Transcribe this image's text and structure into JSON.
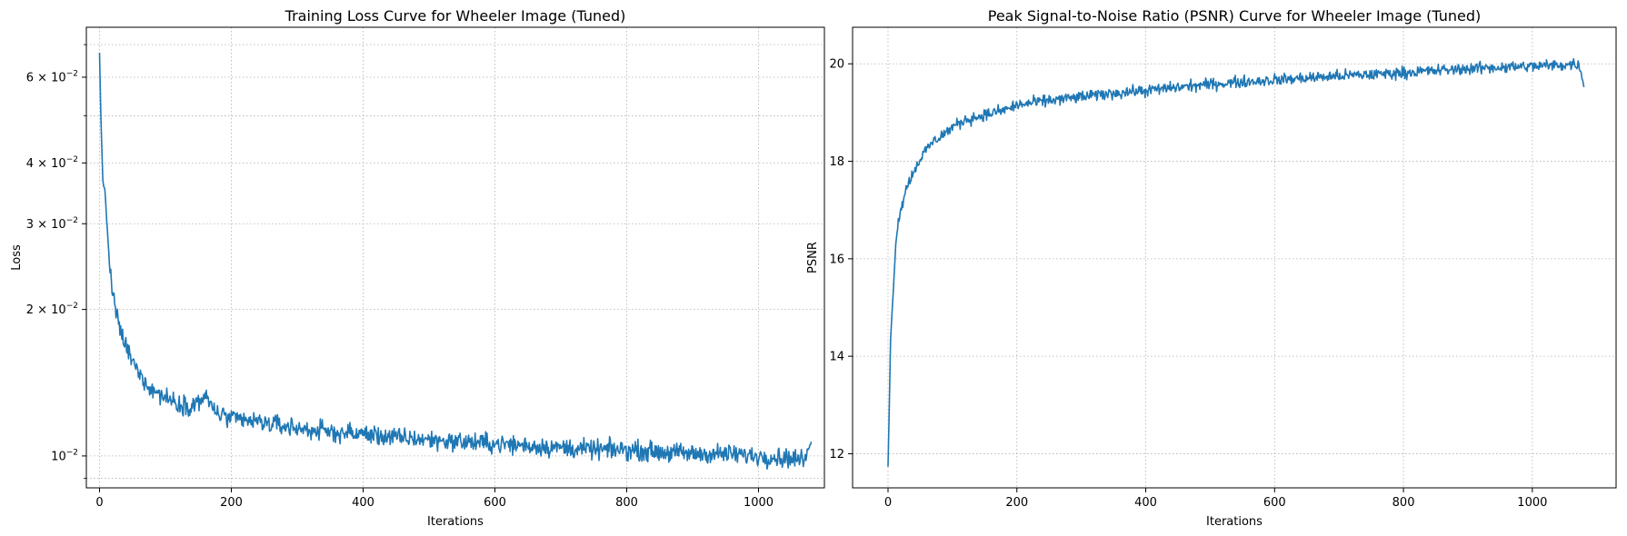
{
  "figure": {
    "background": "#ffffff",
    "line_color": "#1f77b4",
    "grid_color": "#b0b0b0"
  },
  "chart_data": [
    {
      "type": "line",
      "title": "Training Loss Curve for Wheeler Image (Tuned)",
      "xlabel": "Iterations",
      "ylabel": "Loss",
      "yscale": "log",
      "grid": true,
      "grid_style": "dotted",
      "xlim": [
        -20,
        1100
      ],
      "ylim": [
        0.0086,
        0.076
      ],
      "xticks": [
        0,
        200,
        400,
        600,
        800,
        1000
      ],
      "xtick_labels": [
        "0",
        "200",
        "400",
        "600",
        "800",
        "1000"
      ],
      "yticks": [
        0.01,
        0.02,
        0.03,
        0.04,
        0.06
      ],
      "ytick_mantissas": [
        "10",
        "2 × 10",
        "3 × 10",
        "4 × 10",
        "6 × 10"
      ],
      "ytick_exponent": "−2",
      "minor_yticks": [
        0.009,
        0.05,
        0.07
      ],
      "series": [
        {
          "x": [
            0,
            2,
            5,
            8,
            12,
            16,
            20,
            25,
            30,
            40,
            50,
            60,
            70,
            80,
            100,
            120,
            140,
            160,
            180,
            200,
            250,
            300,
            350,
            400,
            450,
            500,
            550,
            600,
            650,
            700,
            750,
            800,
            850,
            900,
            950,
            1000,
            1050,
            1070,
            1075,
            1080
          ],
          "values": [
            0.067,
            0.05,
            0.037,
            0.035,
            0.029,
            0.024,
            0.0215,
            0.0198,
            0.0183,
            0.0168,
            0.0156,
            0.0148,
            0.0142,
            0.0137,
            0.0132,
            0.0128,
            0.0127,
            0.0132,
            0.0122,
            0.0119,
            0.0117,
            0.0114,
            0.0112,
            0.0111,
            0.0109,
            0.0108,
            0.0107,
            0.0106,
            0.0105,
            0.0104,
            0.0103,
            0.0103,
            0.0102,
            0.0101,
            0.0101,
            0.01,
            0.0099,
            0.0098,
            0.0102,
            0.0108
          ],
          "noise": 0.05
        }
      ]
    },
    {
      "type": "line",
      "title": "Peak Signal-to-Noise Ratio (PSNR) Curve for Wheeler Image (Tuned)",
      "xlabel": "Iterations",
      "ylabel": "PSNR",
      "yscale": "linear",
      "grid": true,
      "grid_style": "dotted",
      "xlim": [
        -55,
        1130
      ],
      "ylim": [
        11.3,
        20.75
      ],
      "xticks": [
        0,
        200,
        400,
        600,
        800,
        1000
      ],
      "xtick_labels": [
        "0",
        "200",
        "400",
        "600",
        "800",
        "1000"
      ],
      "yticks": [
        12,
        14,
        16,
        18,
        20
      ],
      "ytick_labels": [
        "12",
        "14",
        "16",
        "18",
        "20"
      ],
      "series": [
        {
          "x": [
            0,
            2,
            4,
            8,
            12,
            16,
            20,
            25,
            30,
            40,
            50,
            60,
            70,
            80,
            100,
            120,
            150,
            180,
            200,
            250,
            300,
            350,
            400,
            450,
            500,
            550,
            600,
            650,
            700,
            750,
            800,
            850,
            900,
            950,
            1000,
            1050,
            1070,
            1075,
            1080
          ],
          "values": [
            11.75,
            13.0,
            14.35,
            15.3,
            16.3,
            16.8,
            17.0,
            17.3,
            17.5,
            17.8,
            18.05,
            18.25,
            18.4,
            18.5,
            18.7,
            18.85,
            18.95,
            19.05,
            19.15,
            19.25,
            19.32,
            19.4,
            19.45,
            19.52,
            19.58,
            19.63,
            19.67,
            19.71,
            19.75,
            19.78,
            19.82,
            19.86,
            19.9,
            19.93,
            19.95,
            19.98,
            20.0,
            19.85,
            19.55
          ],
          "noise": 0.13
        }
      ]
    }
  ]
}
